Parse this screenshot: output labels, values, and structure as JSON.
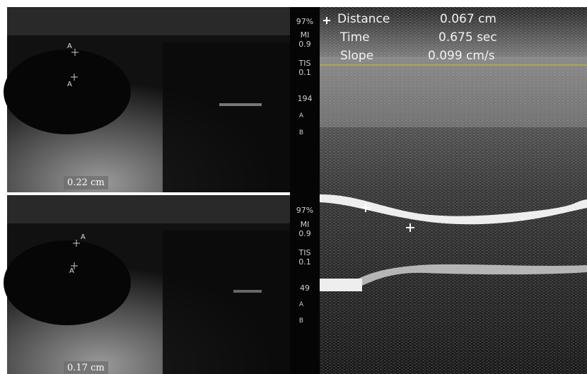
{
  "top_panel": {
    "markers": [
      "A",
      "A"
    ],
    "measurement": "0.22 cm",
    "side_info": {
      "gain": "97%",
      "mi_label": "MI",
      "mi": "0.9",
      "tis_label": "TIS",
      "tis": "0.1",
      "depth": "194",
      "a_label": "A",
      "b_label": "B"
    }
  },
  "bottom_panel": {
    "markers": [
      "A",
      "A"
    ],
    "measurement": "0.17 cm",
    "side_info": {
      "gain": "97%",
      "mi_label": "MI",
      "mi": "0.9",
      "tis_label": "TIS",
      "tis": "0.1",
      "depth": "49",
      "a_label": "A",
      "b_label": "B"
    }
  },
  "mmode": {
    "measurements": [
      {
        "label": "Distance",
        "value": "0.067 cm"
      },
      {
        "label": "Time",
        "value": "0.675 sec"
      },
      {
        "label": "Slope",
        "value": "0.099 cm/s"
      }
    ]
  }
}
